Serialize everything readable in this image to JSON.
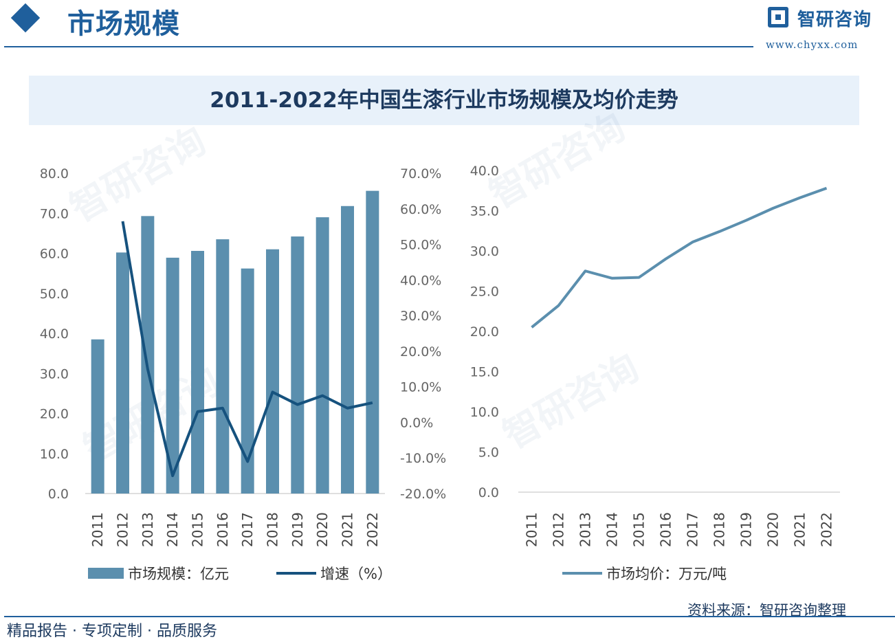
{
  "header": {
    "page_title": "市场规模",
    "brand_name": "智研咨询",
    "brand_url": "www.chyxx.com"
  },
  "title_banner": "2011-2022年中国生漆行业市场规模及均价走势",
  "watermark_text": "智研咨询",
  "chart_data": [
    {
      "type": "bar+line",
      "categories": [
        "2011",
        "2012",
        "2013",
        "2014",
        "2015",
        "2016",
        "2017",
        "2018",
        "2019",
        "2020",
        "2021",
        "2022"
      ],
      "series": [
        {
          "name": "市场规模：亿元",
          "type": "bar",
          "axis": "left",
          "values": [
            38.5,
            60.2,
            69.3,
            58.9,
            60.6,
            63.5,
            56.2,
            61.0,
            64.2,
            69.0,
            71.8,
            75.6
          ]
        },
        {
          "name": "增速（%）",
          "type": "line",
          "axis": "right",
          "values": [
            null,
            56.5,
            15.0,
            -15.0,
            3.0,
            4.0,
            -11.0,
            8.5,
            5.0,
            7.5,
            4.0,
            5.5
          ]
        }
      ],
      "ylim_left": [
        0,
        80
      ],
      "yticks_left": [
        "80.0",
        "70.0",
        "60.0",
        "50.0",
        "40.0",
        "30.0",
        "20.0",
        "10.0",
        "0.0"
      ],
      "ylim_right": [
        -20,
        70
      ],
      "yticks_right": [
        "70.0%",
        "60.0%",
        "50.0%",
        "40.0%",
        "30.0%",
        "20.0%",
        "10.0%",
        "0.0%",
        "-10.0%",
        "-20.0%"
      ],
      "legend": [
        "市场规模：亿元",
        "增速（%）"
      ],
      "colors": {
        "bar": "#5b8fae",
        "line": "#16527e"
      }
    },
    {
      "type": "line",
      "categories": [
        "2011",
        "2012",
        "2013",
        "2014",
        "2015",
        "2016",
        "2017",
        "2018",
        "2019",
        "2020",
        "2021",
        "2022"
      ],
      "series": [
        {
          "name": "市场均价：万元/吨",
          "values": [
            20.5,
            23.2,
            27.5,
            26.6,
            26.7,
            29.0,
            31.1,
            32.4,
            33.8,
            35.3,
            36.6,
            37.8
          ]
        }
      ],
      "ylim": [
        0,
        40
      ],
      "yticks": [
        "40.0",
        "35.0",
        "30.0",
        "25.0",
        "20.0",
        "15.0",
        "10.0",
        "5.0",
        "0.0"
      ],
      "legend": [
        "市场均价：万元/吨"
      ],
      "colors": {
        "line": "#5b8fae"
      }
    }
  ],
  "source": {
    "label": "资料来源：",
    "value": "智研咨询整理"
  },
  "footer": {
    "slogan": "精品报告 · 专项定制 · 品质服务"
  }
}
